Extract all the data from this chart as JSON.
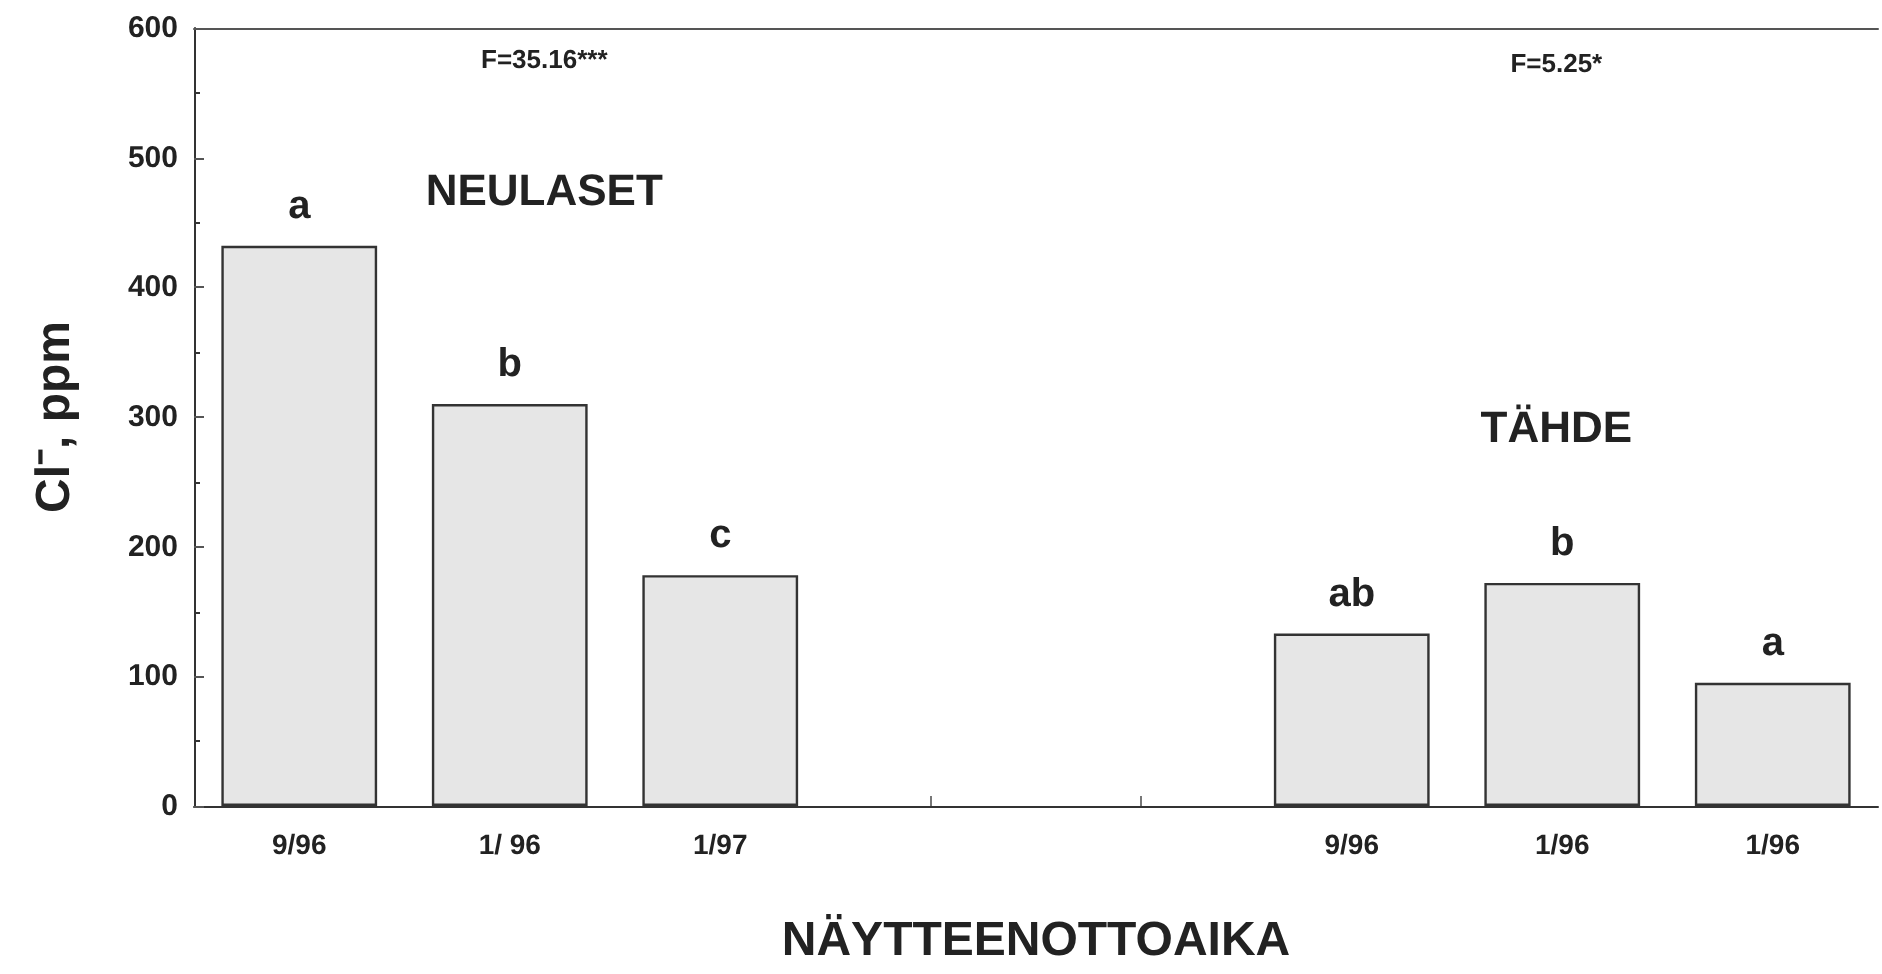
{
  "chart_data": {
    "type": "bar",
    "categories": [
      "9/96",
      "1/ 96",
      "1/97",
      null,
      null,
      "9/96",
      "1/96",
      "1/96"
    ],
    "values": [
      432,
      310,
      178,
      null,
      null,
      133,
      172,
      95
    ],
    "value_labels": [
      "a",
      "b",
      "c",
      null,
      null,
      "ab",
      "b",
      "a"
    ],
    "color": "#e6e6e6",
    "xlabel": "NÄYTTEENOTTOAIKA",
    "ylabel": "Cl⁻, ppm",
    "annotations": [
      "F=35.16***",
      "NEULASET",
      "F=5.25*",
      "TÄHDE"
    ],
    "ylim": [
      0,
      600
    ],
    "yticks": [
      0,
      100,
      200,
      300,
      400,
      500,
      600
    ],
    "grid": false
  }
}
